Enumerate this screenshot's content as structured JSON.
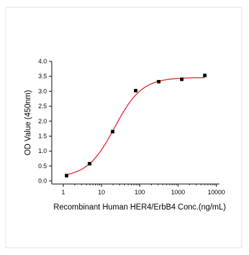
{
  "chart_data": {
    "type": "scatter",
    "xlabel": "Recombinant Human HER4/ErbB4 Conc.(ng/mL)",
    "ylabel": "OD Value (450nm)",
    "xscale": "log",
    "xlim": [
      0.5,
      12000
    ],
    "ylim": [
      -0.1,
      4.0
    ],
    "x_ticks": [
      1,
      10,
      100,
      1000,
      10000
    ],
    "x_tick_labels": [
      "1",
      "10",
      "100",
      "1000",
      "10000"
    ],
    "y_ticks": [
      0.0,
      0.5,
      1.0,
      1.5,
      2.0,
      2.5,
      3.0,
      3.5,
      4.0
    ],
    "y_tick_labels": [
      "0.0",
      "0.5",
      "1.0",
      "1.5",
      "2.0",
      "2.5",
      "3.0",
      "3.5",
      "4.0"
    ],
    "grid": false,
    "legend": "none",
    "series": [
      {
        "marker": "square",
        "color": "#000000",
        "x": [
          1.22,
          4.88,
          19.5,
          78.1,
          312.5,
          1250,
          5000
        ],
        "y": [
          0.18,
          0.58,
          1.65,
          3.02,
          3.32,
          3.4,
          3.53
        ]
      }
    ],
    "fit": {
      "type": "4PL",
      "color": "#e8202a",
      "bottom": 0.12,
      "top": 3.46,
      "ec50": 22,
      "hill": 1.22
    }
  }
}
